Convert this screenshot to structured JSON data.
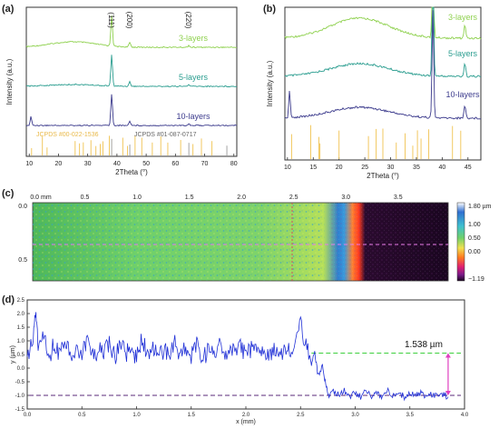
{
  "chart_data": [
    {
      "panel": "(a)",
      "type": "line",
      "xlabel": "2Theta (°)",
      "ylabel": "Intensity (a.u.)",
      "xlim": [
        9,
        81
      ],
      "xticks": [
        "10",
        "20",
        "30",
        "40",
        "50",
        "60",
        "70",
        "80"
      ],
      "peak_labels": [
        {
          "text": "(111)",
          "x": 38.2
        },
        {
          "text": "(200)",
          "x": 44.4
        },
        {
          "text": "(220)",
          "x": 64.6
        }
      ],
      "series": [
        {
          "name": "3-layers",
          "color": "#8fd14f"
        },
        {
          "name": "5-layers",
          "color": "#2a9d8f"
        },
        {
          "name": "10-layers",
          "color": "#3b3a8c"
        }
      ],
      "references": [
        {
          "name": "JCPDS #00-022-1536",
          "color": "#f0c24f",
          "x": [
            10.8,
            14.5,
            16.1,
            25.7,
            27.2,
            28.5,
            31.1,
            32.8,
            34.3,
            35.2,
            37.4,
            42.0,
            43.6,
            46.2,
            48.5,
            52.1,
            55.0,
            57.4,
            61.8,
            66.0,
            68.9,
            72.5
          ]
        },
        {
          "name": "JCPDS #01-087-0717",
          "color": "#999999",
          "x": [
            38.2,
            44.4,
            64.6,
            77.6
          ]
        }
      ]
    },
    {
      "panel": "(b)",
      "type": "line",
      "xlabel": "2Theta (°)",
      "ylabel": "Intensity (a.u.)",
      "xlim": [
        9.5,
        47.5
      ],
      "xticks": [
        "10",
        "15",
        "20",
        "25",
        "30",
        "35",
        "40",
        "45"
      ],
      "series": [
        {
          "name": "3-layers",
          "color": "#8fd14f"
        },
        {
          "name": "5-layers",
          "color": "#2a9d8f"
        },
        {
          "name": "10-layers",
          "color": "#3b3a8c"
        }
      ],
      "reference_x": [
        10.8,
        14.5,
        16.1,
        16.3,
        20.0,
        25.7,
        27.2,
        28.5,
        31.1,
        32.8,
        34.3,
        35.2,
        35.9,
        37.4,
        42.0,
        43.6
      ]
    },
    {
      "panel": "(c)",
      "type": "heatmap",
      "xticks": [
        "0.0 mm",
        "0.5",
        "1.0",
        "1.5",
        "2.0",
        "2.5",
        "3.0",
        "3.5"
      ],
      "yticks": [
        "0.0",
        "0.5"
      ],
      "colorbar_labels": [
        "1.80 µm",
        "1.00",
        "0.50",
        "0.00",
        "−1.19"
      ],
      "colorbar_range": [
        -1.19,
        1.8
      ]
    },
    {
      "panel": "(d)",
      "type": "line",
      "xlabel": "x (mm)",
      "ylabel": "y (µm)",
      "xlim": [
        0,
        4.0
      ],
      "ylim": [
        -1.5,
        2.5
      ],
      "xticks": [
        "0.0",
        "0.5",
        "1.0",
        "1.5",
        "2.0",
        "2.5",
        "3.0",
        "3.5",
        "4.0"
      ],
      "yticks": [
        "-1.5",
        "-1.0",
        "-0.5",
        "0.0",
        "0.5",
        "1.0",
        "1.5",
        "2.0",
        "2.5"
      ],
      "line_color": "#1f2fd6",
      "upper_level": 0.55,
      "lower_level": -1.0,
      "step_height_label": "1.538 µm",
      "profile": [
        [
          0.0,
          0.45
        ],
        [
          0.05,
          1.1
        ],
        [
          0.08,
          2.2
        ],
        [
          0.1,
          0.6
        ],
        [
          0.15,
          1.3
        ],
        [
          0.2,
          0.4
        ],
        [
          0.25,
          0.9
        ],
        [
          0.3,
          0.5
        ],
        [
          0.35,
          1.0
        ],
        [
          0.4,
          0.3
        ],
        [
          0.45,
          0.8
        ],
        [
          0.5,
          0.5
        ],
        [
          0.55,
          1.2
        ],
        [
          0.6,
          0.4
        ],
        [
          0.65,
          0.7
        ],
        [
          0.7,
          0.5
        ],
        [
          0.75,
          0.9
        ],
        [
          0.8,
          0.4
        ],
        [
          0.85,
          1.0
        ],
        [
          0.9,
          0.5
        ],
        [
          0.95,
          0.7
        ],
        [
          1.0,
          0.4
        ],
        [
          1.05,
          1.1
        ],
        [
          1.1,
          0.5
        ],
        [
          1.15,
          0.8
        ],
        [
          1.2,
          0.4
        ],
        [
          1.25,
          0.7
        ],
        [
          1.3,
          0.5
        ],
        [
          1.35,
          0.9
        ],
        [
          1.4,
          0.4
        ],
        [
          1.45,
          0.7
        ],
        [
          1.5,
          0.5
        ],
        [
          1.55,
          1.0
        ],
        [
          1.6,
          0.4
        ],
        [
          1.65,
          0.6
        ],
        [
          1.7,
          0.5
        ],
        [
          1.75,
          0.9
        ],
        [
          1.8,
          0.4
        ],
        [
          1.85,
          0.7
        ],
        [
          1.9,
          0.5
        ],
        [
          1.95,
          0.8
        ],
        [
          2.0,
          0.4
        ],
        [
          2.05,
          0.7
        ],
        [
          2.1,
          0.5
        ],
        [
          2.15,
          0.6
        ],
        [
          2.2,
          0.4
        ],
        [
          2.25,
          0.7
        ],
        [
          2.3,
          0.5
        ],
        [
          2.35,
          0.6
        ],
        [
          2.4,
          0.7
        ],
        [
          2.45,
          1.0
        ],
        [
          2.5,
          1.6
        ],
        [
          2.55,
          0.9
        ],
        [
          2.6,
          0.2
        ],
        [
          2.63,
          0.6
        ],
        [
          2.66,
          -0.3
        ],
        [
          2.7,
          0.1
        ],
        [
          2.73,
          -0.6
        ],
        [
          2.76,
          -1.0
        ],
        [
          2.8,
          -0.85
        ],
        [
          2.85,
          -1.0
        ],
        [
          2.9,
          -0.8
        ],
        [
          2.95,
          -1.05
        ],
        [
          3.0,
          -0.9
        ],
        [
          3.05,
          -1.05
        ],
        [
          3.1,
          -0.85
        ],
        [
          3.15,
          -1.0
        ],
        [
          3.2,
          -0.9
        ],
        [
          3.25,
          -1.05
        ],
        [
          3.3,
          -0.85
        ],
        [
          3.35,
          -1.0
        ],
        [
          3.4,
          -0.9
        ],
        [
          3.45,
          -1.05
        ],
        [
          3.5,
          -0.95
        ],
        [
          3.55,
          -1.0
        ],
        [
          3.6,
          -0.9
        ],
        [
          3.65,
          -1.05
        ],
        [
          3.7,
          -0.95
        ],
        [
          3.75,
          -1.0
        ],
        [
          3.8,
          -0.95
        ],
        [
          3.85,
          -1.05
        ]
      ]
    }
  ]
}
